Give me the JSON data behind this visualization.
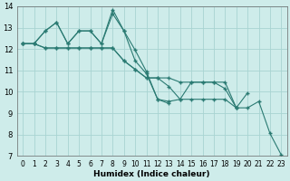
{
  "bg_color": "#ceecea",
  "grid_color": "#a8d4d2",
  "line_color": "#2a7a72",
  "xlabel": "Humidex (Indice chaleur)",
  "xlim": [
    -0.5,
    23.5
  ],
  "ylim": [
    7,
    14
  ],
  "yticks": [
    7,
    8,
    9,
    10,
    11,
    12,
    13,
    14
  ],
  "xticks": [
    0,
    1,
    2,
    3,
    4,
    5,
    6,
    7,
    8,
    9,
    10,
    11,
    12,
    13,
    14,
    15,
    16,
    17,
    18,
    19,
    20,
    21,
    22,
    23
  ],
  "series": [
    [
      12.25,
      12.25,
      12.85,
      13.25,
      12.25,
      12.85,
      12.85,
      12.25,
      13.65,
      12.85,
      11.45,
      10.85,
      9.65,
      9.55,
      9.65,
      10.45,
      10.45,
      10.45,
      10.45,
      9.25,
      9.25,
      9.55,
      8.05,
      7.05
    ],
    [
      12.25,
      12.25,
      12.85,
      13.25,
      12.25,
      12.85,
      12.85,
      12.25,
      13.85,
      12.85,
      11.95,
      10.95,
      9.65,
      9.45,
      null,
      null,
      null,
      null,
      null,
      null,
      null,
      null,
      null,
      null
    ],
    [
      12.25,
      12.25,
      12.05,
      12.05,
      12.05,
      12.05,
      12.05,
      12.05,
      12.05,
      11.45,
      11.05,
      10.65,
      10.65,
      10.65,
      10.45,
      10.45,
      10.45,
      10.45,
      10.15,
      9.25,
      9.95,
      null,
      null,
      null
    ],
    [
      12.25,
      12.25,
      12.05,
      12.05,
      12.05,
      12.05,
      12.05,
      12.05,
      12.05,
      11.45,
      11.05,
      10.65,
      10.65,
      10.25,
      9.65,
      9.65,
      9.65,
      9.65,
      9.65,
      9.25,
      null,
      null,
      null,
      null
    ]
  ]
}
